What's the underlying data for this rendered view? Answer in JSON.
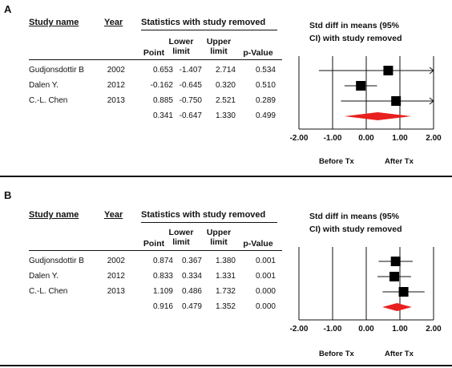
{
  "headers": {
    "study_name": "Study name",
    "year": "Year",
    "stats_group": "Statistics with study removed",
    "point": "Point",
    "lower_1": "Lower",
    "lower_2": "limit",
    "upper_1": "Upper",
    "upper_2": "limit",
    "pvalue": "p-Value",
    "forest_title_1": "Std diff in means (95%",
    "forest_title_2": "CI) with study removed",
    "before": "Before Tx",
    "after": "After Tx"
  },
  "chart_data": [
    {
      "panel": "A",
      "type": "forest",
      "xlim": [
        -2.0,
        2.0
      ],
      "ticks": [
        "-2.00",
        "-1.00",
        "0.00",
        "1.00",
        "2.00"
      ],
      "rows": [
        {
          "study": "Gudjonsdottir B",
          "year": "2002",
          "point": "0.653",
          "lower": "-1.407",
          "upper": "2.714",
          "p": "0.534"
        },
        {
          "study": "Dalen Y.",
          "year": "2012",
          "point": "-0.162",
          "lower": "-0.645",
          "upper": "0.320",
          "p": "0.510"
        },
        {
          "study": "C.-L. Chen",
          "year": "2013",
          "point": "0.885",
          "lower": "-0.750",
          "upper": "2.521",
          "p": "0.289"
        }
      ],
      "summary": {
        "point": "0.341",
        "lower": "-0.647",
        "upper": "1.330",
        "p": "0.499"
      }
    },
    {
      "panel": "B",
      "type": "forest",
      "xlim": [
        -2.0,
        2.0
      ],
      "ticks": [
        "-2.00",
        "-1.00",
        "0.00",
        "1.00",
        "2.00"
      ],
      "rows": [
        {
          "study": "Gudjonsdottir B",
          "year": "2002",
          "point": "0.874",
          "lower": "0.367",
          "upper": "1.380",
          "p": "0.001"
        },
        {
          "study": "Dalen Y.",
          "year": "2012",
          "point": "0.833",
          "lower": "0.334",
          "upper": "1.331",
          "p": "0.001"
        },
        {
          "study": "C.-L. Chen",
          "year": "2013",
          "point": "1.109",
          "lower": "0.486",
          "upper": "1.732",
          "p": "0.000"
        }
      ],
      "summary": {
        "point": "0.916",
        "lower": "0.479",
        "upper": "1.352",
        "p": "0.000"
      }
    }
  ],
  "colors": {
    "diamond": "#e8201f",
    "marker": "#000000"
  }
}
